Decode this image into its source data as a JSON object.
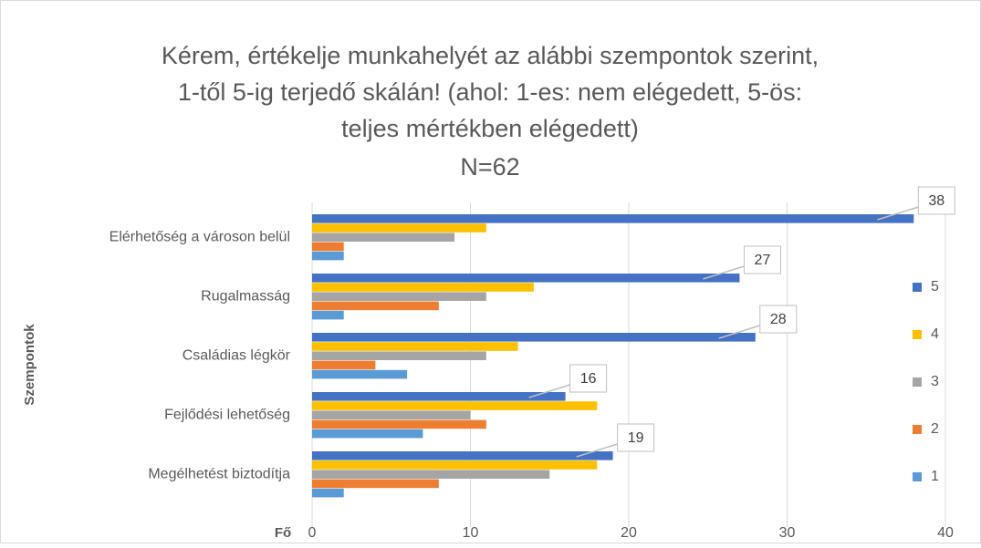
{
  "chart_data": {
    "type": "hbar",
    "title": [
      "Kérem, értékelje munkahelyét az alábbi szempontok szerint,",
      "1-től 5-ig terjedő skálán! (ahol: 1-es: nem elégedett, 5-ös:",
      "teljes mértékben elégedett)"
    ],
    "subtitle": "N=62",
    "x_label": "Fő",
    "y_label": "Szempontok",
    "categories": [
      "Elérhetőség a városon belül",
      "Rugalmasság",
      "Családias légkör",
      "Fejlődési lehetőség",
      "Megélhetést biztodítja"
    ],
    "series": [
      {
        "name": "5",
        "color": "#4472c4",
        "values": [
          38,
          27,
          28,
          16,
          19
        ]
      },
      {
        "name": "4",
        "color": "#ffc000",
        "values": [
          11,
          14,
          13,
          18,
          18
        ]
      },
      {
        "name": "3",
        "color": "#a5a5a5",
        "values": [
          9,
          11,
          11,
          10,
          15
        ]
      },
      {
        "name": "2",
        "color": "#ed7d31",
        "values": [
          2,
          8,
          4,
          11,
          8
        ]
      },
      {
        "name": "1",
        "color": "#5b9bd5",
        "values": [
          2,
          2,
          6,
          7,
          2
        ]
      }
    ],
    "labeled_series": 0,
    "xlim": [
      0,
      40
    ],
    "xticks": [
      0,
      10,
      20,
      30,
      40
    ],
    "grid": true,
    "legend": "right"
  }
}
